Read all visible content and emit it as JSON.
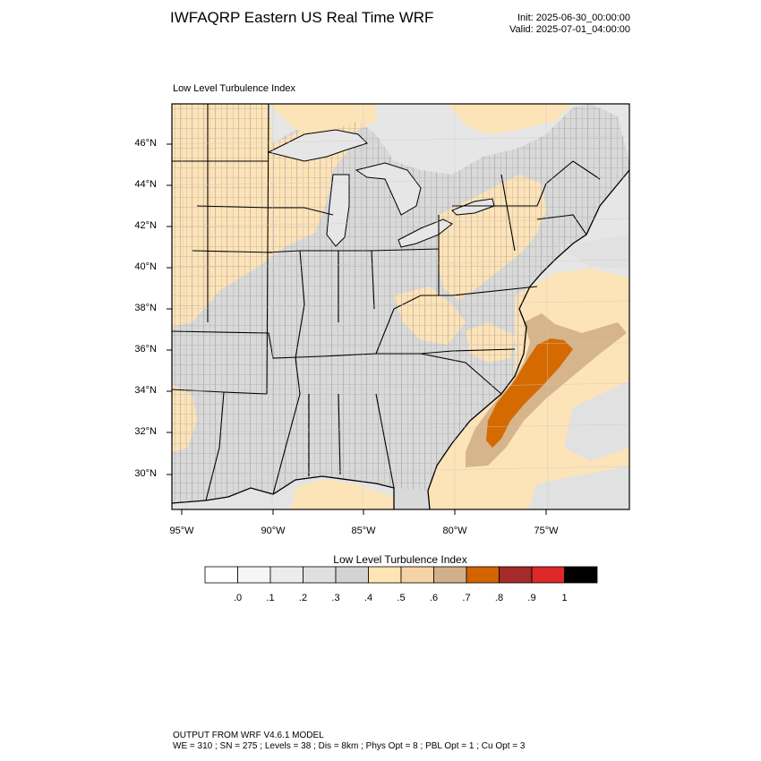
{
  "header": {
    "title": "IWFAQRP Eastern US Real Time WRF",
    "init": "Init: 2025-06-30_00:00:00",
    "valid": "Valid: 2025-07-01_04:00:00"
  },
  "map": {
    "panel_label": "Low Level Turbulence Index",
    "lat_ticks": [
      "46°N",
      "44°N",
      "42°N",
      "40°N",
      "38°N",
      "36°N",
      "34°N",
      "32°N",
      "30°N"
    ],
    "lon_ticks": [
      "95°W",
      "90°W",
      "85°W",
      "80°W",
      "75°W"
    ],
    "colors": {
      "ocean": "#e6e6e6",
      "low_gray": "#dcdcdc",
      "light_orange": "#fde3b8",
      "tan": "#d6b48c",
      "dark_orange": "#d56a00"
    }
  },
  "colorbar": {
    "title": "Low Level Turbulence Index",
    "labels": [
      ".0",
      ".1",
      ".2",
      ".3",
      ".4",
      ".5",
      ".6",
      ".7",
      ".8",
      ".9",
      "1"
    ],
    "colors": [
      "#ffffff",
      "#f6f6f6",
      "#ececec",
      "#e0e0e0",
      "#d3d3d3",
      "#ffe4b5",
      "#f5d3a6",
      "#d2b08a",
      "#d26400",
      "#a52a2a",
      "#dc2828",
      "#000000"
    ]
  },
  "footer": {
    "line1": "OUTPUT FROM WRF V4.6.1 MODEL",
    "line2": "WE = 310 ; SN = 275 ; Levels = 38 ; Dis = 8km ; Phys Opt = 8 ; PBL Opt = 1 ; Cu Opt = 3"
  }
}
